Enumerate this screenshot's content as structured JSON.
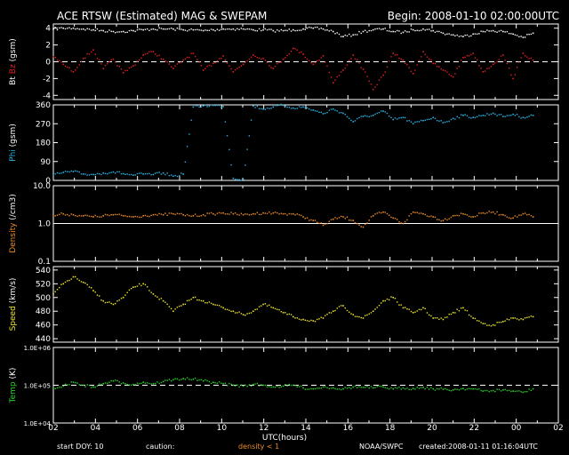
{
  "header": {
    "title": "ACE RTSW (Estimated) MAG & SWEPAM",
    "begin": "Begin: 2008-01-10 02:00:00UTC"
  },
  "footer": {
    "start_doy_label": "start DOY:",
    "start_doy_value": "10",
    "caution_label": "caution:",
    "caution_text": "density < 1",
    "agency": "NOAA/SWPC",
    "created": "created:2008-01-11 01:16:04UTC"
  },
  "colors": {
    "bt": "#ffffff",
    "bz": "#e02020",
    "phi": "#28b4e6",
    "density": "#f08c28",
    "speed": "#f0e628",
    "temp": "#28d228",
    "caution": "#f08c28",
    "axes": "#ffffff",
    "ref": "#ffffff"
  },
  "chart_data": [
    {
      "type": "scatter",
      "panel": "mag",
      "ylabel_parts": [
        {
          "text": "Bt",
          "color": "#ffffff"
        },
        {
          "text": "Bz",
          "color": "#e02020"
        },
        {
          "text": "(gsm)",
          "color": "#ffffff"
        }
      ],
      "ylim": [
        -4.5,
        4.5
      ],
      "yticks": [
        4,
        2,
        0,
        -2,
        -4
      ],
      "ytick_labels": [
        "4",
        "2",
        "0",
        "-2",
        "-4"
      ],
      "refline": 0,
      "series": [
        {
          "name": "Bt",
          "color": "#ffffff",
          "values": [
            3.9,
            4.0,
            4.0,
            3.9,
            3.8,
            3.7,
            3.6,
            3.6,
            3.7,
            3.8,
            3.9,
            3.9,
            3.9,
            3.8,
            3.8,
            3.7,
            3.8,
            3.9,
            3.9,
            3.9,
            3.8,
            3.8,
            3.7,
            3.7,
            3.8,
            3.9,
            4.0,
            3.9,
            3.6,
            3.0,
            3.2,
            3.6,
            3.8,
            3.9,
            3.6,
            3.5,
            3.8,
            3.9,
            3.7,
            3.4,
            3.2,
            3.0,
            3.3,
            3.6,
            3.7,
            3.6,
            3.3,
            2.9,
            3.4
          ]
        },
        {
          "name": "Bz",
          "color": "#e02020",
          "values": [
            0.6,
            -0.3,
            -1.2,
            0.4,
            1.4,
            -0.8,
            0.3,
            -1.3,
            -0.5,
            0.8,
            1.2,
            0.3,
            -0.8,
            0.2,
            1.0,
            -1.0,
            -0.2,
            0.7,
            -1.2,
            -0.3,
            0.8,
            0.4,
            -0.8,
            0.3,
            1.6,
            0.9,
            -0.3,
            0.7,
            -2.5,
            -1.0,
            0.8,
            -0.9,
            -3.3,
            -1.6,
            1.0,
            0.2,
            -1.4,
            1.2,
            -0.2,
            -1.0,
            -1.8,
            0.5,
            1.0,
            -1.2,
            -0.3,
            0.8,
            -2.0,
            1.0,
            0.2
          ]
        }
      ]
    },
    {
      "type": "scatter",
      "panel": "phi",
      "ylabel_parts": [
        {
          "text": "Phi",
          "color": "#28b4e6"
        },
        {
          "text": "(gsm)",
          "color": "#ffffff"
        }
      ],
      "ylim": [
        0,
        360
      ],
      "yticks": [
        360,
        270,
        180,
        90,
        0
      ],
      "ytick_labels": [
        "360",
        "270",
        "180",
        "90",
        "0"
      ],
      "series": [
        {
          "name": "Phi",
          "color": "#28b4e6",
          "values": [
            25,
            38,
            42,
            30,
            28,
            35,
            40,
            32,
            25,
            30,
            28,
            35,
            20,
            30,
            350,
            355,
            358,
            352,
            10,
            5,
            355,
            340,
            350,
            358,
            345,
            350,
            335,
            318,
            340,
            320,
            280,
            305,
            310,
            330,
            290,
            300,
            270,
            285,
            300,
            275,
            295,
            310,
            300,
            310,
            320,
            305,
            315,
            300,
            310
          ]
        }
      ]
    },
    {
      "type": "scatter",
      "panel": "density",
      "ylabel_parts": [
        {
          "text": "Density",
          "color": "#f08c28"
        },
        {
          "text": "(/cm3)",
          "color": "#ffffff"
        }
      ],
      "scale": "log",
      "ylim": [
        0.1,
        10.0
      ],
      "yticks": [
        10,
        1,
        0.1
      ],
      "ytick_labels": [
        "10.0",
        "1.0",
        "0.1"
      ],
      "refline": 1,
      "series": [
        {
          "name": "Density",
          "color": "#f08c28",
          "values": [
            1.6,
            1.8,
            1.7,
            1.6,
            1.5,
            1.6,
            1.7,
            1.6,
            1.5,
            1.6,
            1.7,
            1.7,
            1.8,
            1.7,
            1.6,
            1.7,
            1.8,
            1.9,
            1.8,
            1.7,
            1.8,
            1.9,
            1.9,
            1.8,
            1.8,
            1.5,
            1.2,
            0.9,
            1.3,
            1.5,
            1.2,
            0.8,
            1.6,
            2.0,
            1.4,
            1.0,
            2.0,
            1.8,
            1.5,
            1.2,
            1.6,
            1.8,
            1.5,
            1.9,
            2.0,
            1.7,
            1.4,
            1.8,
            1.5
          ]
        }
      ]
    },
    {
      "type": "scatter",
      "panel": "speed",
      "ylabel_parts": [
        {
          "text": "Speed",
          "color": "#f0e628"
        },
        {
          "text": "(km/s)",
          "color": "#ffffff"
        }
      ],
      "ylim": [
        435,
        545
      ],
      "yticks": [
        540,
        520,
        500,
        480,
        460,
        440
      ],
      "ytick_labels": [
        "540",
        "520",
        "500",
        "480",
        "460",
        "440"
      ],
      "series": [
        {
          "name": "Speed",
          "color": "#f0e628",
          "values": [
            505,
            520,
            530,
            522,
            510,
            495,
            490,
            500,
            515,
            520,
            505,
            495,
            480,
            490,
            500,
            495,
            490,
            485,
            480,
            475,
            480,
            490,
            485,
            478,
            472,
            468,
            466,
            470,
            480,
            488,
            475,
            470,
            480,
            495,
            500,
            485,
            478,
            485,
            470,
            468,
            478,
            485,
            470,
            462,
            460,
            465,
            470,
            468,
            472
          ]
        }
      ]
    },
    {
      "type": "scatter",
      "panel": "temp",
      "ylabel_parts": [
        {
          "text": "Temp",
          "color": "#28d228"
        },
        {
          "text": "(K)",
          "color": "#ffffff"
        }
      ],
      "scale": "log",
      "ylim": [
        10000,
        1000000
      ],
      "yticks": [
        1000000,
        100000,
        10000
      ],
      "ytick_labels": [
        "1.0E+06",
        "1.0E+05",
        "1.0E+04"
      ],
      "refline": 100000,
      "series": [
        {
          "name": "Temp",
          "color": "#28d228",
          "values": [
            85000,
            95000,
            120000,
            100000,
            90000,
            110000,
            130000,
            115000,
            105000,
            120000,
            110000,
            125000,
            140000,
            150000,
            145000,
            130000,
            120000,
            110000,
            100000,
            95000,
            105000,
            100000,
            90000,
            95000,
            100000,
            85000,
            80000,
            90000,
            85000,
            80000,
            90000,
            88000,
            85000,
            90000,
            80000,
            85000,
            82000,
            88000,
            80000,
            78000,
            75000,
            82000,
            80000,
            70000,
            72000,
            75000,
            70000,
            65000,
            80000
          ]
        }
      ]
    }
  ],
  "x_axis": {
    "label": "UTC(hours)",
    "tick_labels": [
      "02",
      "04",
      "06",
      "08",
      "10",
      "12",
      "14",
      "16",
      "18",
      "20",
      "22",
      "00",
      "02"
    ],
    "range_hours": [
      0,
      24
    ],
    "data_end_hours": 22.8
  }
}
